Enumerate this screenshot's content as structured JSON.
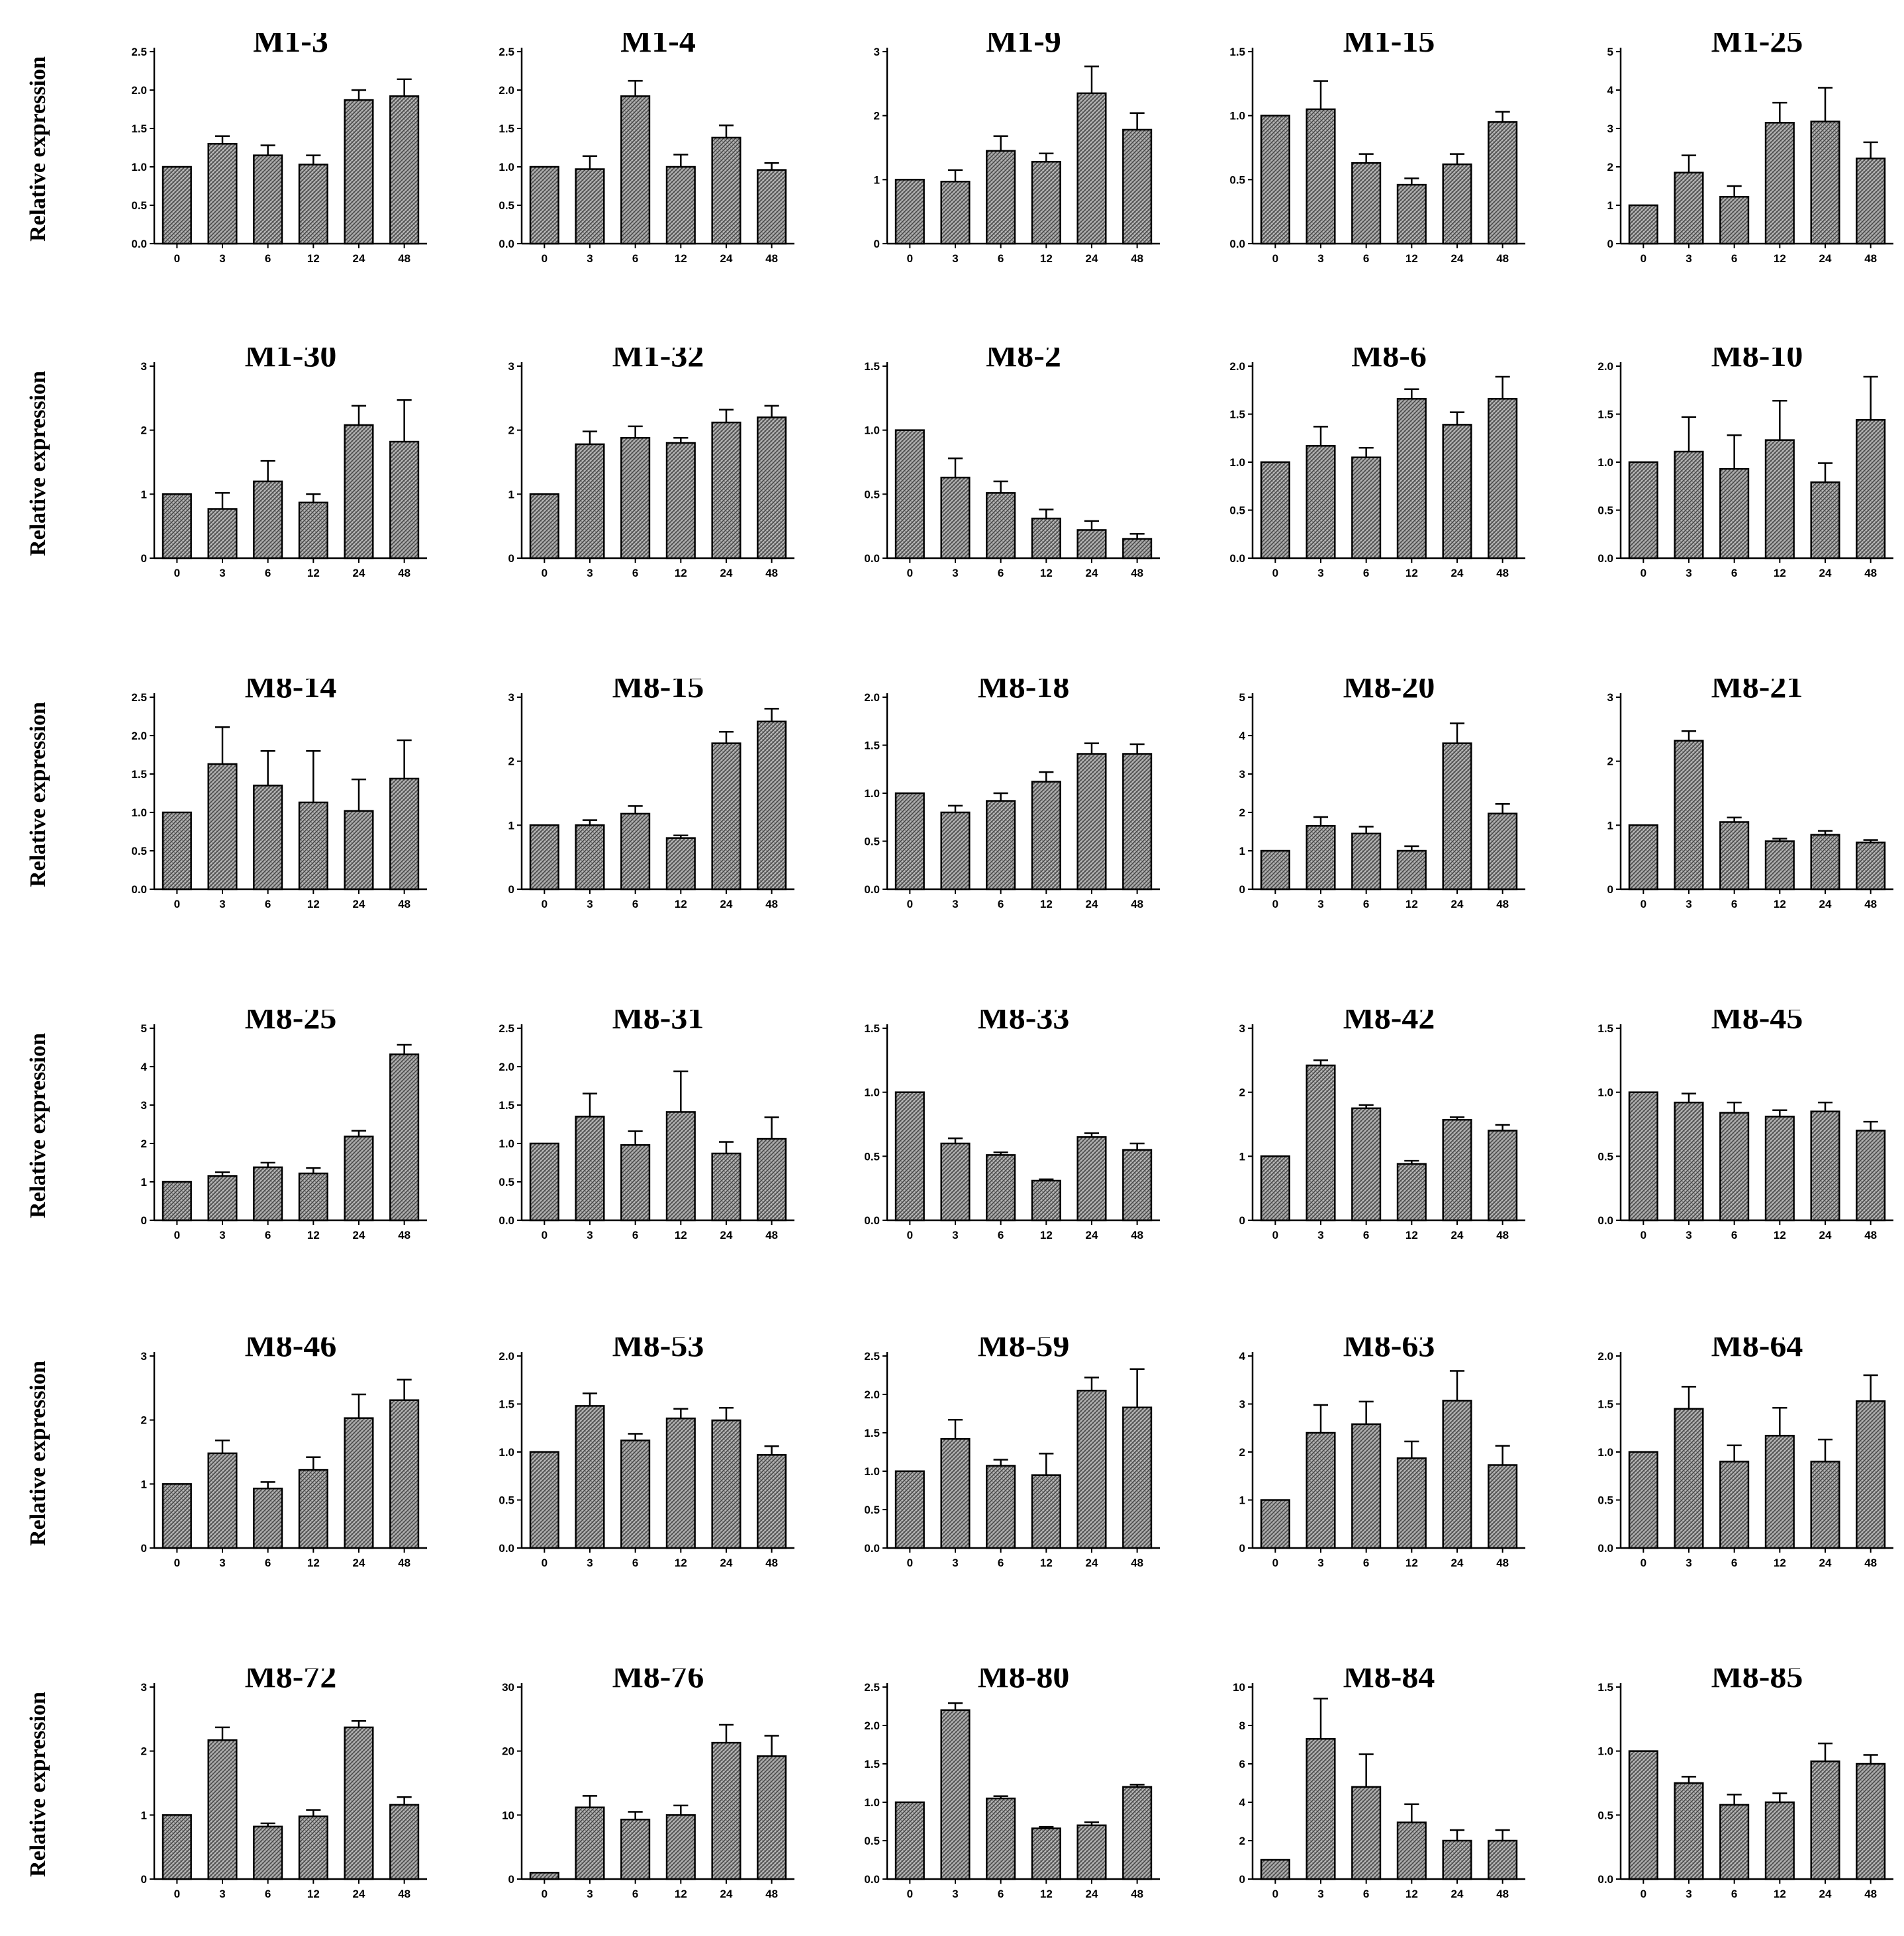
{
  "y_axis_label": "Relative expression",
  "colors": {
    "bar_fill": "#8c8c8c",
    "bar_pattern_light": "#b4b4b4",
    "bar_pattern_dark": "#4a4a4a",
    "axis": "#000000",
    "background": "#ffffff"
  },
  "chart_data": [
    {
      "type": "bar",
      "title": "M1-3",
      "categories": [
        "0",
        "3",
        "6",
        "12",
        "24",
        "48"
      ],
      "values": [
        1.0,
        1.3,
        1.15,
        1.03,
        1.87,
        1.92
      ],
      "errors": [
        0,
        0.1,
        0.13,
        0.12,
        0.13,
        0.22
      ],
      "ylim": [
        0,
        2.5
      ],
      "yticks": [
        "0.0",
        "0.5",
        "1.0",
        "1.5",
        "2.0",
        "2.5"
      ]
    },
    {
      "type": "bar",
      "title": "M1-4",
      "categories": [
        "0",
        "3",
        "6",
        "12",
        "24",
        "48"
      ],
      "values": [
        1.0,
        0.97,
        1.92,
        1.0,
        1.38,
        0.96
      ],
      "errors": [
        0,
        0.17,
        0.2,
        0.16,
        0.16,
        0.09
      ],
      "ylim": [
        0,
        2.5
      ],
      "yticks": [
        "0.0",
        "0.5",
        "1.0",
        "1.5",
        "2.0",
        "2.5"
      ]
    },
    {
      "type": "bar",
      "title": "M1-9",
      "categories": [
        "0",
        "3",
        "6",
        "12",
        "24",
        "48"
      ],
      "values": [
        1.0,
        0.97,
        1.45,
        1.28,
        2.35,
        1.78
      ],
      "errors": [
        0,
        0.18,
        0.23,
        0.13,
        0.42,
        0.26
      ],
      "ylim": [
        0,
        3
      ],
      "yticks": [
        "0",
        "1",
        "2",
        "3"
      ]
    },
    {
      "type": "bar",
      "title": "M1-15",
      "categories": [
        "0",
        "3",
        "6",
        "12",
        "24",
        "48"
      ],
      "values": [
        1.0,
        1.05,
        0.63,
        0.46,
        0.62,
        0.95
      ],
      "errors": [
        0,
        0.22,
        0.07,
        0.05,
        0.08,
        0.08
      ],
      "ylim": [
        0,
        1.5
      ],
      "yticks": [
        "0.0",
        "0.5",
        "1.0",
        "1.5"
      ]
    },
    {
      "type": "bar",
      "title": "M1-25",
      "categories": [
        "0",
        "3",
        "6",
        "12",
        "24",
        "48"
      ],
      "values": [
        1.0,
        1.85,
        1.22,
        3.15,
        3.18,
        2.22
      ],
      "errors": [
        0,
        0.45,
        0.28,
        0.52,
        0.88,
        0.42
      ],
      "ylim": [
        0,
        5
      ],
      "yticks": [
        "0",
        "1",
        "2",
        "3",
        "4",
        "5"
      ]
    },
    {
      "type": "bar",
      "title": "M1-30",
      "categories": [
        "0",
        "3",
        "6",
        "12",
        "24",
        "48"
      ],
      "values": [
        1.0,
        0.77,
        1.2,
        0.87,
        2.08,
        1.82
      ],
      "errors": [
        0,
        0.25,
        0.32,
        0.13,
        0.3,
        0.65
      ],
      "ylim": [
        0,
        3
      ],
      "yticks": [
        "0",
        "1",
        "2",
        "3"
      ]
    },
    {
      "type": "bar",
      "title": "M1-32",
      "categories": [
        "0",
        "3",
        "6",
        "12",
        "24",
        "48"
      ],
      "values": [
        1.0,
        1.78,
        1.88,
        1.8,
        2.12,
        2.2
      ],
      "errors": [
        0,
        0.2,
        0.18,
        0.08,
        0.2,
        0.18
      ],
      "ylim": [
        0,
        3
      ],
      "yticks": [
        "0",
        "1",
        "2",
        "3"
      ]
    },
    {
      "type": "bar",
      "title": "M8-2",
      "categories": [
        "0",
        "3",
        "6",
        "12",
        "24",
        "48"
      ],
      "values": [
        1.0,
        0.63,
        0.51,
        0.31,
        0.22,
        0.15
      ],
      "errors": [
        0,
        0.15,
        0.09,
        0.07,
        0.07,
        0.04
      ],
      "ylim": [
        0,
        1.5
      ],
      "yticks": [
        "0.0",
        "0.5",
        "1.0",
        "1.5"
      ]
    },
    {
      "type": "bar",
      "title": "M8-6",
      "categories": [
        "0",
        "3",
        "6",
        "12",
        "24",
        "48"
      ],
      "values": [
        1.0,
        1.17,
        1.05,
        1.66,
        1.39,
        1.66
      ],
      "errors": [
        0,
        0.2,
        0.1,
        0.1,
        0.13,
        0.23
      ],
      "ylim": [
        0,
        2
      ],
      "yticks": [
        "0.0",
        "0.5",
        "1.0",
        "1.5",
        "2.0"
      ]
    },
    {
      "type": "bar",
      "title": "M8-10",
      "categories": [
        "0",
        "3",
        "6",
        "12",
        "24",
        "48"
      ],
      "values": [
        1.0,
        1.11,
        0.93,
        1.23,
        0.79,
        1.44
      ],
      "errors": [
        0,
        0.36,
        0.35,
        0.41,
        0.2,
        0.45
      ],
      "ylim": [
        0,
        2
      ],
      "yticks": [
        "0.0",
        "0.5",
        "1.0",
        "1.5",
        "2.0"
      ]
    },
    {
      "type": "bar",
      "title": "M8-14",
      "categories": [
        "0",
        "3",
        "6",
        "12",
        "24",
        "48"
      ],
      "values": [
        1.0,
        1.63,
        1.35,
        1.13,
        1.02,
        1.44
      ],
      "errors": [
        0,
        0.48,
        0.45,
        0.67,
        0.41,
        0.5
      ],
      "ylim": [
        0,
        2.5
      ],
      "yticks": [
        "0.0",
        "0.5",
        "1.0",
        "1.5",
        "2.0",
        "2.5"
      ]
    },
    {
      "type": "bar",
      "title": "M8-15",
      "categories": [
        "0",
        "3",
        "6",
        "12",
        "24",
        "48"
      ],
      "values": [
        1.0,
        1.0,
        1.18,
        0.8,
        2.28,
        2.62
      ],
      "errors": [
        0,
        0.08,
        0.12,
        0.04,
        0.18,
        0.2
      ],
      "ylim": [
        0,
        3
      ],
      "yticks": [
        "0",
        "1",
        "2",
        "3"
      ]
    },
    {
      "type": "bar",
      "title": "M8-18",
      "categories": [
        "0",
        "3",
        "6",
        "12",
        "24",
        "48"
      ],
      "values": [
        1.0,
        0.8,
        0.92,
        1.12,
        1.41,
        1.41
      ],
      "errors": [
        0,
        0.07,
        0.08,
        0.1,
        0.11,
        0.1
      ],
      "ylim": [
        0,
        2
      ],
      "yticks": [
        "0.0",
        "0.5",
        "1.0",
        "1.5",
        "2.0"
      ]
    },
    {
      "type": "bar",
      "title": "M8-20",
      "categories": [
        "0",
        "3",
        "6",
        "12",
        "24",
        "48"
      ],
      "values": [
        1.0,
        1.65,
        1.45,
        1.0,
        3.8,
        1.97
      ],
      "errors": [
        0,
        0.23,
        0.18,
        0.12,
        0.52,
        0.25
      ],
      "ylim": [
        0,
        5
      ],
      "yticks": [
        "0",
        "1",
        "2",
        "3",
        "4",
        "5"
      ]
    },
    {
      "type": "bar",
      "title": "M8-21",
      "categories": [
        "0",
        "3",
        "6",
        "12",
        "24",
        "48"
      ],
      "values": [
        1.0,
        2.32,
        1.05,
        0.75,
        0.85,
        0.73
      ],
      "errors": [
        0,
        0.15,
        0.07,
        0.04,
        0.06,
        0.04
      ],
      "ylim": [
        0,
        3
      ],
      "yticks": [
        "0",
        "1",
        "2",
        "3"
      ]
    },
    {
      "type": "bar",
      "title": "M8-25",
      "categories": [
        "0",
        "3",
        "6",
        "12",
        "24",
        "48"
      ],
      "values": [
        1.0,
        1.15,
        1.38,
        1.22,
        2.18,
        4.32
      ],
      "errors": [
        0,
        0.1,
        0.12,
        0.14,
        0.15,
        0.25
      ],
      "ylim": [
        0,
        5
      ],
      "yticks": [
        "0",
        "1",
        "2",
        "3",
        "4",
        "5"
      ]
    },
    {
      "type": "bar",
      "title": "M8-31",
      "categories": [
        "0",
        "3",
        "6",
        "12",
        "24",
        "48"
      ],
      "values": [
        1.0,
        1.35,
        0.98,
        1.41,
        0.87,
        1.06
      ],
      "errors": [
        0,
        0.3,
        0.18,
        0.53,
        0.15,
        0.28
      ],
      "ylim": [
        0,
        2.5
      ],
      "yticks": [
        "0.0",
        "0.5",
        "1.0",
        "1.5",
        "2.0",
        "2.5"
      ]
    },
    {
      "type": "bar",
      "title": "M8-33",
      "categories": [
        "0",
        "3",
        "6",
        "12",
        "24",
        "48"
      ],
      "values": [
        1.0,
        0.6,
        0.51,
        0.31,
        0.65,
        0.55
      ],
      "errors": [
        0,
        0.04,
        0.02,
        0.01,
        0.03,
        0.05
      ],
      "ylim": [
        0,
        1.5
      ],
      "yticks": [
        "0.0",
        "0.5",
        "1.0",
        "1.5"
      ]
    },
    {
      "type": "bar",
      "title": "M8-42",
      "categories": [
        "0",
        "3",
        "6",
        "12",
        "24",
        "48"
      ],
      "values": [
        1.0,
        2.42,
        1.75,
        0.88,
        1.57,
        1.4
      ],
      "errors": [
        0,
        0.08,
        0.05,
        0.05,
        0.04,
        0.09
      ],
      "ylim": [
        0,
        3
      ],
      "yticks": [
        "0",
        "1",
        "2",
        "3"
      ]
    },
    {
      "type": "bar",
      "title": "M8-45",
      "categories": [
        "0",
        "3",
        "6",
        "12",
        "24",
        "48"
      ],
      "values": [
        1.0,
        0.92,
        0.84,
        0.81,
        0.85,
        0.7
      ],
      "errors": [
        0,
        0.07,
        0.08,
        0.05,
        0.07,
        0.07
      ],
      "ylim": [
        0,
        1.5
      ],
      "yticks": [
        "0.0",
        "0.5",
        "1.0",
        "1.5"
      ]
    },
    {
      "type": "bar",
      "title": "M8-46",
      "categories": [
        "0",
        "3",
        "6",
        "12",
        "24",
        "48"
      ],
      "values": [
        1.0,
        1.48,
        0.93,
        1.22,
        2.03,
        2.31
      ],
      "errors": [
        0,
        0.2,
        0.1,
        0.2,
        0.37,
        0.32
      ],
      "ylim": [
        0,
        3
      ],
      "yticks": [
        "0",
        "1",
        "2",
        "3"
      ]
    },
    {
      "type": "bar",
      "title": "M8-53",
      "categories": [
        "0",
        "3",
        "6",
        "12",
        "24",
        "48"
      ],
      "values": [
        1.0,
        1.48,
        1.12,
        1.35,
        1.33,
        0.97
      ],
      "errors": [
        0,
        0.13,
        0.07,
        0.1,
        0.13,
        0.09
      ],
      "ylim": [
        0,
        2
      ],
      "yticks": [
        "0.0",
        "0.5",
        "1.0",
        "1.5",
        "2.0"
      ]
    },
    {
      "type": "bar",
      "title": "M8-59",
      "categories": [
        "0",
        "3",
        "6",
        "12",
        "24",
        "48"
      ],
      "values": [
        1.0,
        1.42,
        1.07,
        0.95,
        2.05,
        1.83
      ],
      "errors": [
        0,
        0.25,
        0.08,
        0.28,
        0.17,
        0.5
      ],
      "ylim": [
        0,
        2.5
      ],
      "yticks": [
        "0.0",
        "0.5",
        "1.0",
        "1.5",
        "2.0",
        "2.5"
      ]
    },
    {
      "type": "bar",
      "title": "M8-63",
      "categories": [
        "0",
        "3",
        "6",
        "12",
        "24",
        "48"
      ],
      "values": [
        1.0,
        2.4,
        2.58,
        1.87,
        3.07,
        1.73
      ],
      "errors": [
        0,
        0.58,
        0.47,
        0.35,
        0.62,
        0.4
      ],
      "ylim": [
        0,
        4
      ],
      "yticks": [
        "0",
        "1",
        "2",
        "3",
        "4"
      ]
    },
    {
      "type": "bar",
      "title": "M8-64",
      "categories": [
        "0",
        "3",
        "6",
        "12",
        "24",
        "48"
      ],
      "values": [
        1.0,
        1.45,
        0.9,
        1.17,
        0.9,
        1.53
      ],
      "errors": [
        0,
        0.23,
        0.17,
        0.29,
        0.23,
        0.27
      ],
      "ylim": [
        0,
        2
      ],
      "yticks": [
        "0.0",
        "0.5",
        "1.0",
        "1.5",
        "2.0"
      ]
    },
    {
      "type": "bar",
      "title": "M8-72",
      "categories": [
        "0",
        "3",
        "6",
        "12",
        "24",
        "48"
      ],
      "values": [
        1.0,
        2.17,
        0.82,
        0.98,
        2.37,
        1.16
      ],
      "errors": [
        0,
        0.2,
        0.05,
        0.1,
        0.1,
        0.12
      ],
      "ylim": [
        0,
        3
      ],
      "yticks": [
        "0",
        "1",
        "2",
        "3"
      ]
    },
    {
      "type": "bar",
      "title": "M8-76",
      "categories": [
        "0",
        "3",
        "6",
        "12",
        "24",
        "48"
      ],
      "values": [
        1.0,
        11.2,
        9.3,
        10.0,
        21.3,
        19.2
      ],
      "errors": [
        0,
        1.8,
        1.2,
        1.5,
        2.8,
        3.2
      ],
      "ylim": [
        0,
        30
      ],
      "yticks": [
        "0",
        "10",
        "20",
        "30"
      ]
    },
    {
      "type": "bar",
      "title": "M8-80",
      "categories": [
        "0",
        "3",
        "6",
        "12",
        "24",
        "48"
      ],
      "values": [
        1.0,
        2.2,
        1.05,
        0.66,
        0.7,
        1.2
      ],
      "errors": [
        0,
        0.09,
        0.03,
        0.02,
        0.04,
        0.03
      ],
      "ylim": [
        0,
        2.5
      ],
      "yticks": [
        "0.0",
        "0.5",
        "1.0",
        "1.5",
        "2.0",
        "2.5"
      ]
    },
    {
      "type": "bar",
      "title": "M8-84",
      "categories": [
        "0",
        "3",
        "6",
        "12",
        "24",
        "48"
      ],
      "values": [
        1.0,
        7.3,
        4.8,
        2.95,
        2.0,
        2.0
      ],
      "errors": [
        0,
        2.1,
        1.7,
        0.95,
        0.55,
        0.55
      ],
      "ylim": [
        0,
        10
      ],
      "yticks": [
        "0",
        "2",
        "4",
        "6",
        "8",
        "10"
      ]
    },
    {
      "type": "bar",
      "title": "M8-85",
      "categories": [
        "0",
        "3",
        "6",
        "12",
        "24",
        "48"
      ],
      "values": [
        1.0,
        0.75,
        0.58,
        0.6,
        0.92,
        0.9
      ],
      "errors": [
        0,
        0.05,
        0.08,
        0.07,
        0.14,
        0.07
      ],
      "ylim": [
        0,
        1.5
      ],
      "yticks": [
        "0.0",
        "0.5",
        "1.0",
        "1.5"
      ]
    }
  ]
}
